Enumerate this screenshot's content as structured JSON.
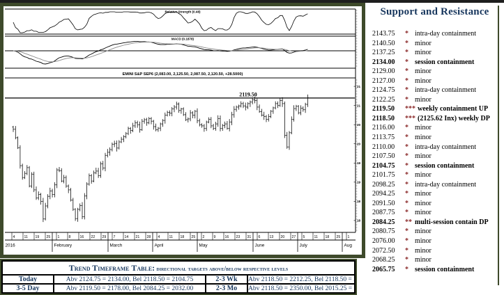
{
  "header": {
    "title": "Support and Resistance"
  },
  "support_resistance": {
    "rows": [
      {
        "price": "2143.75",
        "stars": "*",
        "desc": "intra-day containment",
        "bold": false
      },
      {
        "price": "2140.50",
        "stars": "*",
        "desc": "minor",
        "bold": false
      },
      {
        "price": "2137.25",
        "stars": "*",
        "desc": "minor",
        "bold": false
      },
      {
        "price": "2134.00",
        "stars": "*",
        "desc": "session containment",
        "bold": true
      },
      {
        "price": "2129.00",
        "stars": "*",
        "desc": "minor",
        "bold": false
      },
      {
        "price": "2127.00",
        "stars": "*",
        "desc": "minor",
        "bold": false
      },
      {
        "price": "2124.75",
        "stars": "*",
        "desc": "intra-day containment",
        "bold": false
      },
      {
        "price": "2122.25",
        "stars": "*",
        "desc": "minor",
        "bold": false
      },
      {
        "price": "2119.50",
        "stars": "***",
        "desc": "weekly containment UP",
        "bold": true
      },
      {
        "price": "2118.50",
        "stars": "***",
        "desc": "(2125.62 Inx) weekly DP",
        "bold": true
      },
      {
        "price": "2116.00",
        "stars": "*",
        "desc": "minor",
        "bold": false
      },
      {
        "price": "2113.75",
        "stars": "*",
        "desc": "minor",
        "bold": false
      },
      {
        "price": "2110.00",
        "stars": "*",
        "desc": "intra-day containment",
        "bold": false
      },
      {
        "price": "2107.50",
        "stars": "*",
        "desc": "minor",
        "bold": false
      },
      {
        "price": "2104.75",
        "stars": "*",
        "desc": "session containment",
        "bold": true
      },
      {
        "price": "2101.75",
        "stars": "*",
        "desc": "minor",
        "bold": false
      },
      {
        "price": "2098.25",
        "stars": "*",
        "desc": "intra-day containment",
        "bold": false
      },
      {
        "price": "2094.25",
        "stars": "*",
        "desc": "minor",
        "bold": false
      },
      {
        "price": "2091.50",
        "stars": "*",
        "desc": "minor",
        "bold": false
      },
      {
        "price": "2087.75",
        "stars": "*",
        "desc": "minor",
        "bold": false
      },
      {
        "price": "2084.25",
        "stars": "**",
        "desc": "multi-session contain DP",
        "bold": true
      },
      {
        "price": "2080.75",
        "stars": "*",
        "desc": "minor",
        "bold": false
      },
      {
        "price": "2076.00",
        "stars": "*",
        "desc": "minor",
        "bold": false
      },
      {
        "price": "2072.50",
        "stars": "*",
        "desc": "minor",
        "bold": false
      },
      {
        "price": "2068.25",
        "stars": "*",
        "desc": "minor",
        "bold": false
      },
      {
        "price": "2065.75",
        "stars": "*",
        "desc": "session containment",
        "bold": true
      }
    ]
  },
  "trend_table": {
    "title_main": "Trend Timeframe Table:",
    "title_rest": " directional targets above/below respective levels",
    "rows": [
      {
        "label": "Today",
        "value": "Abv 2124.75 = 2134.00,  Bel 2118.50 = 2104.75",
        "label2": "2-3 Wk",
        "value2": "Abv 2118.50 = 2212.25, Bel 2118.50 = 2015.25"
      },
      {
        "label": "3-5 Day",
        "value": "Abv 2119.50 = 2178.00, Bel 2084.25 = 2032.00",
        "label2": "2-3 Mo",
        "value2": "Abv 2118.50 = 2350.00, Bel 2015.25 = 1826.50"
      }
    ]
  },
  "chart_data": {
    "type": "ohlc-bar",
    "symbol_title": "EMINI S&P SEP6 (2,083.00, 2,125.50, 2,087.50, 2,120.50, +28.5000)",
    "panels": [
      {
        "name": "oscillator",
        "label": "Relative Strength (0.48)"
      },
      {
        "name": "macd",
        "label": "MACD (0.1878)"
      }
    ],
    "level_line": {
      "price": 2119.5,
      "label": "2119.50"
    },
    "ylim": [
      1769,
      2172
    ],
    "right_axis": [
      {
        "text": "21",
        "price": 2150
      },
      {
        "text": "21",
        "price": 2100
      },
      {
        "text": "20",
        "price": 2050
      },
      {
        "text": "20",
        "price": 2000
      },
      {
        "text": "19",
        "price": 1950
      },
      {
        "text": "19",
        "price": 1900
      },
      {
        "text": "18",
        "price": 1850
      },
      {
        "text": "18",
        "price": 1800
      }
    ],
    "x_axis": {
      "week_day_labels": [
        "4",
        "11",
        "19",
        "25",
        "1",
        "8",
        "16",
        "22",
        "29",
        "7",
        "14",
        "21",
        "28",
        "4",
        "11",
        "18",
        "25",
        "2",
        "9",
        "16",
        "23",
        "31",
        "6",
        "13",
        "20",
        "27",
        "5",
        "11",
        "18",
        "25",
        "1"
      ],
      "months": [
        {
          "label": "2016",
          "weeks": 4
        },
        {
          "label": "February",
          "weeks": 5
        },
        {
          "label": "March",
          "weeks": 4
        },
        {
          "label": "April",
          "weeks": 4
        },
        {
          "label": "May",
          "weeks": 5
        },
        {
          "label": "June",
          "weeks": 4
        },
        {
          "label": "July",
          "weeks": 4
        },
        {
          "label": "Aug",
          "weeks": 1
        }
      ]
    },
    "closes": [
      2038,
      2016,
      1990,
      1943,
      1912,
      1923,
      1938,
      1890,
      1921,
      1880,
      1859,
      1868,
      1850,
      1804,
      1838,
      1863,
      1877,
      1868,
      1893,
      1932,
      1930,
      1903,
      1912,
      1890,
      1880,
      1853,
      1829,
      1805,
      1829,
      1839,
      1810,
      1864,
      1895,
      1917,
      1903,
      1924,
      1929,
      1917,
      1948,
      1937,
      1970,
      1978,
      1985,
      1999,
      2001,
      1989,
      2005,
      2012,
      2019,
      2027,
      2040,
      2035,
      2047,
      2055,
      2050,
      2037,
      2059,
      2063,
      2055,
      2066,
      2059,
      2045,
      2037,
      2041,
      2052,
      2061,
      2075,
      2082,
      2080,
      2091,
      2096,
      2104,
      2087,
      2091,
      2076,
      2063,
      2065,
      2081,
      2075,
      2085,
      2060,
      2050,
      2047,
      2040,
      2057,
      2064,
      2047,
      2040,
      2052,
      2066,
      2040,
      2048,
      2052,
      2040,
      2057,
      2076,
      2090,
      2096,
      2099,
      2105,
      2099,
      2096,
      2105,
      2109,
      2115,
      2113,
      2096,
      2084,
      2075,
      2071,
      2064,
      2071,
      2085,
      2094,
      2105,
      2100,
      2113,
      2105,
      2022,
      1992,
      2029,
      2064,
      2092,
      2098,
      2081,
      2093,
      2089,
      2103,
      2120
    ]
  }
}
